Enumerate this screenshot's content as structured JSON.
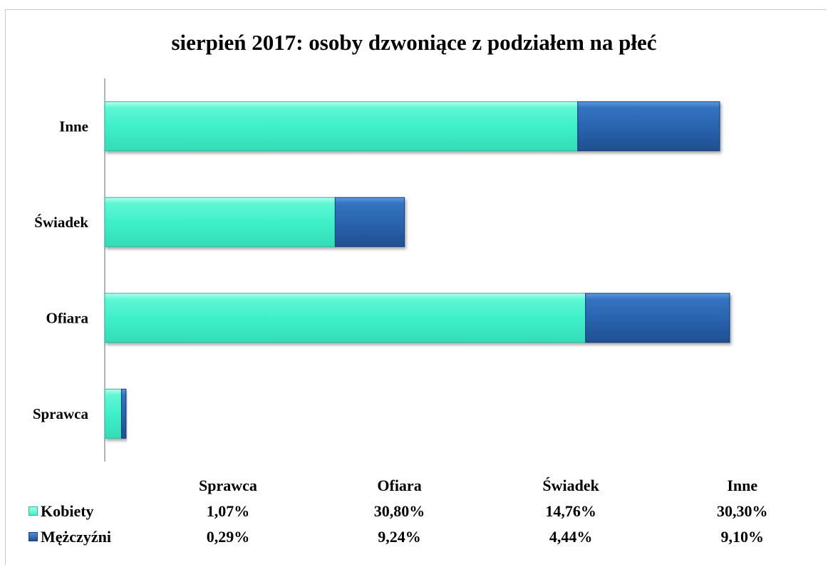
{
  "chart_data": {
    "type": "bar",
    "orientation": "horizontal",
    "stacked": true,
    "title": "sierpień 2017: osoby dzwoniące z podziałem na płeć",
    "categories": [
      "Sprawca",
      "Ofiara",
      "Świadek",
      "Inne"
    ],
    "series": [
      {
        "name": "Kobiety",
        "values": [
          1.07,
          30.8,
          14.76,
          30.3
        ],
        "labels": [
          "1,07%",
          "30,80%",
          "14,76%",
          "30,30%"
        ]
      },
      {
        "name": "Mężczyźni",
        "values": [
          0.29,
          9.24,
          4.44,
          9.1
        ],
        "labels": [
          "0,29%",
          "9,24%",
          "4,44%",
          "9,10%"
        ]
      }
    ],
    "xlim": [
      0,
      42
    ],
    "grid": false,
    "legend": "data-table-below",
    "colors": {
      "Kobiety": "#3ef0c8",
      "Mężczyźni": "#2a64b0"
    }
  }
}
